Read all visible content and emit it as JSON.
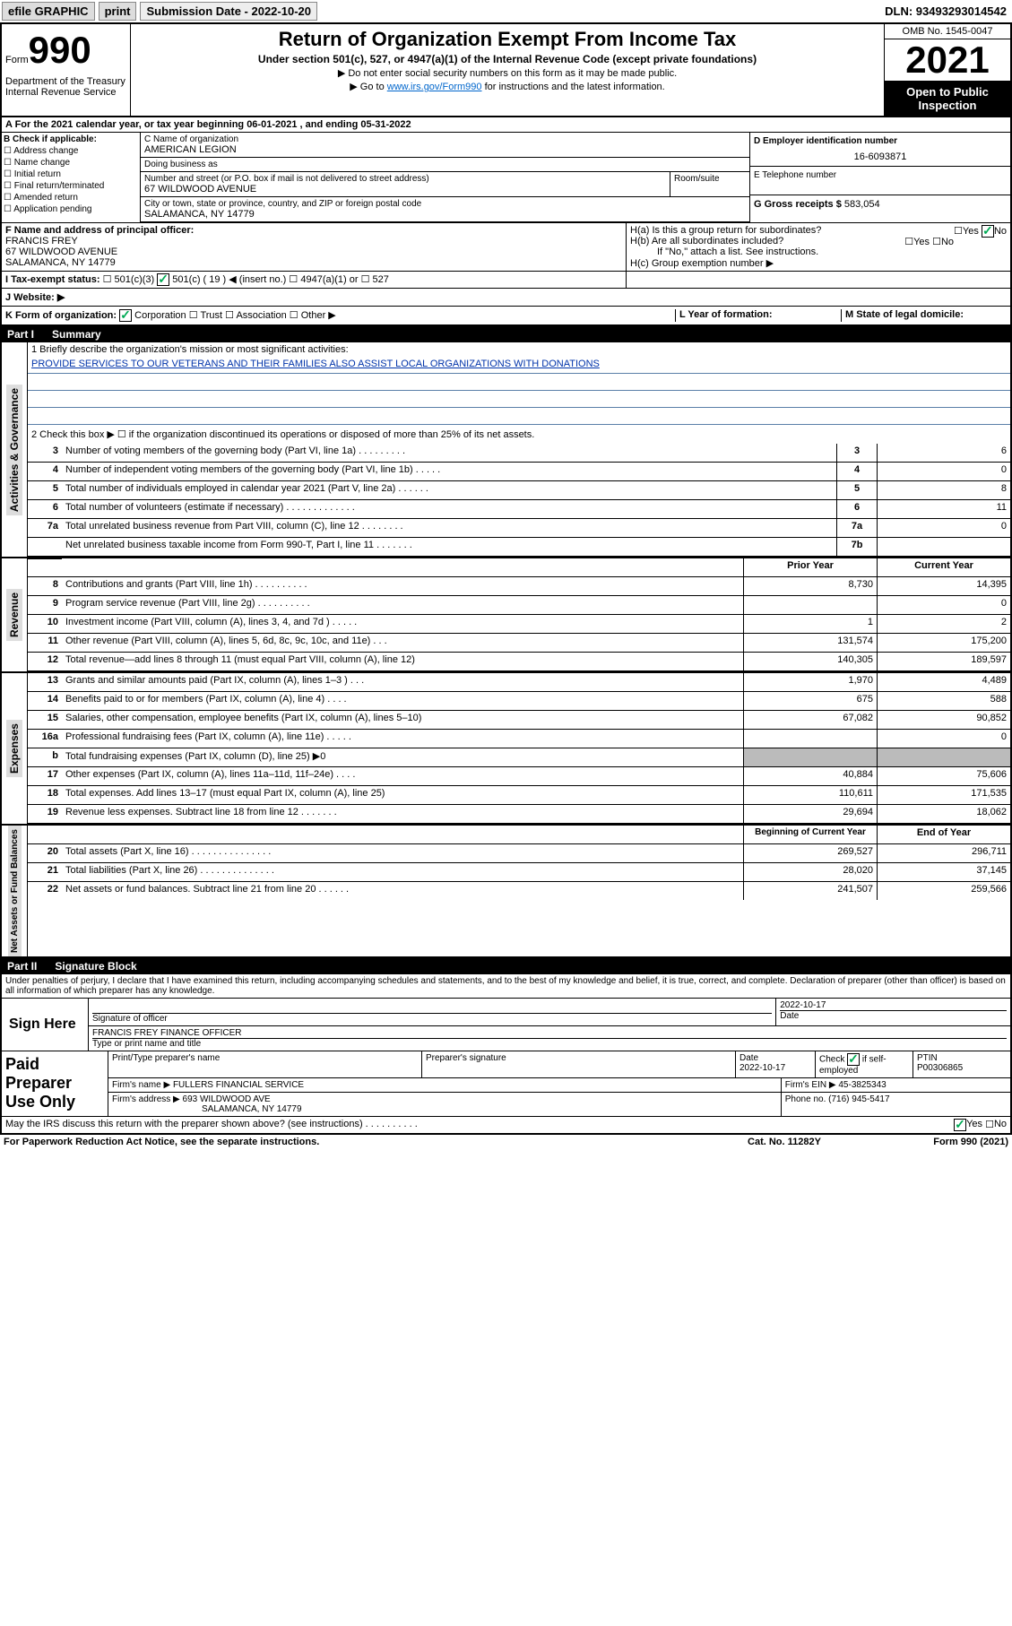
{
  "topbar": {
    "efile": "efile GRAPHIC",
    "print": "print",
    "sub_date_label": "Submission Date - 2022-10-20",
    "dln": "DLN: 93493293014542"
  },
  "header": {
    "form_label": "Form",
    "form_num": "990",
    "dept": "Department of the Treasury\nInternal Revenue Service",
    "title": "Return of Organization Exempt From Income Tax",
    "subtitle": "Under section 501(c), 527, or 4947(a)(1) of the Internal Revenue Code (except private foundations)",
    "sub1": "▶ Do not enter social security numbers on this form as it may be made public.",
    "sub2_pre": "▶ Go to ",
    "sub2_link": "www.irs.gov/Form990",
    "sub2_post": " for instructions and the latest information.",
    "omb": "OMB No. 1545-0047",
    "year": "2021",
    "open": "Open to Public Inspection"
  },
  "section_a": "A   For the 2021 calendar year, or tax year beginning 06-01-2021   , and ending 05-31-2022",
  "col_b": {
    "label": "B Check if applicable:",
    "items": [
      "Address change",
      "Name change",
      "Initial return",
      "Final return/terminated",
      "Amended return",
      "Application pending"
    ]
  },
  "col_c": {
    "name_label": "C Name of organization",
    "name": "AMERICAN LEGION",
    "dba_label": "Doing business as",
    "addr_label": "Number and street (or P.O. box if mail is not delivered to street address)",
    "room_label": "Room/suite",
    "addr": "67 WILDWOOD AVENUE",
    "city_label": "City or town, state or province, country, and ZIP or foreign postal code",
    "city": "SALAMANCA, NY  14779"
  },
  "col_d": {
    "ein_label": "D Employer identification number",
    "ein": "16-6093871",
    "tel_label": "E Telephone number",
    "gross_label": "G Gross receipts $",
    "gross": "583,054"
  },
  "row_f": {
    "label": "F  Name and address of principal officer:",
    "name": "FRANCIS FREY",
    "addr1": "67 WILDWOOD AVENUE",
    "addr2": "SALAMANCA, NY  14779"
  },
  "row_h": {
    "ha": "H(a)  Is this a group return for subordinates?",
    "hb": "H(b)  Are all subordinates included?",
    "hb_note": "If \"No,\" attach a list. See instructions.",
    "hc": "H(c)  Group exemption number ▶",
    "yes": "Yes",
    "no": "No"
  },
  "row_i": {
    "label": "I    Tax-exempt status:",
    "opts": [
      "501(c)(3)",
      "501(c) ( 19 ) ◀ (insert no.)",
      "4947(a)(1) or",
      "527"
    ]
  },
  "row_j": "J   Website: ▶",
  "row_k": {
    "label": "K Form of organization:",
    "opts": [
      "Corporation",
      "Trust",
      "Association",
      "Other ▶"
    ],
    "l": "L Year of formation:",
    "m": "M State of legal domicile:"
  },
  "part1": {
    "title": "Part I",
    "subtitle": "Summary",
    "sections": {
      "governance": {
        "label": "Activities & Governance",
        "mission_label": "1   Briefly describe the organization's mission or most significant activities:",
        "mission": "PROVIDE SERVICES TO OUR VETERANS AND THEIR FAMILIES ALSO ASSIST LOCAL ORGANIZATIONS WITH DONATIONS",
        "line2": "2   Check this box ▶ ☐  if the organization discontinued its operations or disposed of more than 25% of its net assets.",
        "rows": [
          {
            "n": "3",
            "t": "Number of voting members of the governing body (Part VI, line 1a)  .   .   .   .   .   .   .   .   .",
            "b": "3",
            "v": "6"
          },
          {
            "n": "4",
            "t": "Number of independent voting members of the governing body (Part VI, line 1b)  .   .   .   .   .",
            "b": "4",
            "v": "0"
          },
          {
            "n": "5",
            "t": "Total number of individuals employed in calendar year 2021 (Part V, line 2a)   .   .   .   .   .   .",
            "b": "5",
            "v": "8"
          },
          {
            "n": "6",
            "t": "Total number of volunteers (estimate if necessary)  .   .   .   .   .   .   .   .   .   .   .   .   .",
            "b": "6",
            "v": "11"
          },
          {
            "n": "7a",
            "t": "Total unrelated business revenue from Part VIII, column (C), line 12  .   .   .   .   .   .   .   .",
            "b": "7a",
            "v": "0"
          },
          {
            "n": "",
            "t": "Net unrelated business taxable income from Form 990-T, Part I, line 11   .   .   .   .   .   .   .",
            "b": "7b",
            "v": ""
          }
        ]
      },
      "revenue": {
        "label": "Revenue",
        "header_prior": "Prior Year",
        "header_current": "Current Year",
        "rows": [
          {
            "n": "8",
            "t": "Contributions and grants (Part VIII, line 1h)   .   .   .   .   .   .   .   .   .   .",
            "p": "8,730",
            "c": "14,395"
          },
          {
            "n": "9",
            "t": "Program service revenue (Part VIII, line 2g)    .   .   .   .   .   .   .   .   .   .",
            "p": "",
            "c": "0"
          },
          {
            "n": "10",
            "t": "Investment income (Part VIII, column (A), lines 3, 4, and 7d )   .   .   .   .   .",
            "p": "1",
            "c": "2"
          },
          {
            "n": "11",
            "t": "Other revenue (Part VIII, column (A), lines 5, 6d, 8c, 9c, 10c, and 11e)    .   .   .",
            "p": "131,574",
            "c": "175,200"
          },
          {
            "n": "12",
            "t": "Total revenue—add lines 8 through 11 (must equal Part VIII, column (A), line 12)",
            "p": "140,305",
            "c": "189,597"
          }
        ]
      },
      "expenses": {
        "label": "Expenses",
        "rows": [
          {
            "n": "13",
            "t": "Grants and similar amounts paid (Part IX, column (A), lines 1–3 )   .   .   .",
            "p": "1,970",
            "c": "4,489"
          },
          {
            "n": "14",
            "t": "Benefits paid to or for members (Part IX, column (A), line 4)   .   .   .   .",
            "p": "675",
            "c": "588"
          },
          {
            "n": "15",
            "t": "Salaries, other compensation, employee benefits (Part IX, column (A), lines 5–10)",
            "p": "67,082",
            "c": "90,852"
          },
          {
            "n": "16a",
            "t": "Professional fundraising fees (Part IX, column (A), line 11e)   .   .   .   .   .",
            "p": "",
            "c": "0"
          },
          {
            "n": "b",
            "t": "Total fundraising expenses (Part IX, column (D), line 25) ▶0",
            "p": "grey",
            "c": "grey"
          },
          {
            "n": "17",
            "t": "Other expenses (Part IX, column (A), lines 11a–11d, 11f–24e)   .   .   .   .",
            "p": "40,884",
            "c": "75,606"
          },
          {
            "n": "18",
            "t": "Total expenses. Add lines 13–17 (must equal Part IX, column (A), line 25)",
            "p": "110,611",
            "c": "171,535"
          },
          {
            "n": "19",
            "t": "Revenue less expenses. Subtract line 18 from line 12   .   .   .   .   .   .   .",
            "p": "29,694",
            "c": "18,062"
          }
        ]
      },
      "netassets": {
        "label": "Net Assets or Fund Balances",
        "header_begin": "Beginning of Current Year",
        "header_end": "End of Year",
        "rows": [
          {
            "n": "20",
            "t": "Total assets (Part X, line 16)   .   .   .   .   .   .   .   .   .   .   .   .   .   .   .",
            "p": "269,527",
            "c": "296,711"
          },
          {
            "n": "21",
            "t": "Total liabilities (Part X, line 26)  .   .   .   .   .   .   .   .   .   .   .   .   .   .",
            "p": "28,020",
            "c": "37,145"
          },
          {
            "n": "22",
            "t": "Net assets or fund balances. Subtract line 21 from line 20   .   .   .   .   .   .",
            "p": "241,507",
            "c": "259,566"
          }
        ]
      }
    }
  },
  "part2": {
    "title": "Part II",
    "subtitle": "Signature Block",
    "declaration": "Under penalties of perjury, I declare that I have examined this return, including accompanying schedules and statements, and to the best of my knowledge and belief, it is true, correct, and complete. Declaration of preparer (other than officer) is based on all information of which preparer has any knowledge.",
    "sign_here": "Sign Here",
    "sig_officer": "Signature of officer",
    "date": "Date",
    "sig_date": "2022-10-17",
    "officer_name": "FRANCIS FREY FINANCE OFFICER",
    "type_name": "Type or print name and title",
    "paid": "Paid Preparer Use Only",
    "prep_name_label": "Print/Type preparer's name",
    "prep_sig_label": "Preparer's signature",
    "prep_date_label": "Date",
    "prep_date": "2022-10-17",
    "check_if": "Check ☑ if self-employed",
    "ptin_label": "PTIN",
    "ptin": "P00306865",
    "firm_name_label": "Firm's name    ▶",
    "firm_name": "FULLERS FINANCIAL SERVICE",
    "firm_ein_label": "Firm's EIN ▶",
    "firm_ein": "45-3825343",
    "firm_addr_label": "Firm's address ▶",
    "firm_addr": "693 WILDWOOD AVE",
    "firm_city": "SALAMANCA, NY  14779",
    "phone_label": "Phone no.",
    "phone": "(716) 945-5417",
    "may_irs": "May the IRS discuss this return with the preparer shown above? (see instructions)   .   .   .   .   .   .   .   .   .   .",
    "yes": "Yes",
    "no": "No"
  },
  "footer": {
    "left": "For Paperwork Reduction Act Notice, see the separate instructions.",
    "mid": "Cat. No. 11282Y",
    "right": "Form 990 (2021)"
  }
}
